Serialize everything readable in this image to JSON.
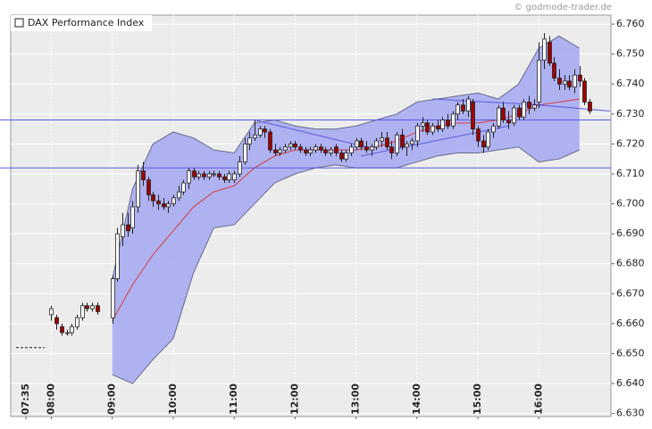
{
  "chart_data": {
    "type": "candlestick",
    "title": "DAX Performance Index",
    "source": "© godmode-trader.de",
    "xlim": [
      440,
      1031
    ],
    "ylim": [
      6629,
      6763
    ],
    "xticks": [
      {
        "value": 455,
        "label": "07:35"
      },
      {
        "value": 480,
        "label": "08:00"
      },
      {
        "value": 540,
        "label": "09:00"
      },
      {
        "value": 600,
        "label": "10:00"
      },
      {
        "value": 660,
        "label": "11:00"
      },
      {
        "value": 720,
        "label": "12:00"
      },
      {
        "value": 780,
        "label": "13:00"
      },
      {
        "value": 840,
        "label": "14:00"
      },
      {
        "value": 900,
        "label": "15:00"
      },
      {
        "value": 960,
        "label": "16:00"
      }
    ],
    "yticks": [
      {
        "value": 6630,
        "label": "6.630"
      },
      {
        "value": 6640,
        "label": "6.640"
      },
      {
        "value": 6650,
        "label": "6.650"
      },
      {
        "value": 6660,
        "label": "6.660"
      },
      {
        "value": 6670,
        "label": "6.670"
      },
      {
        "value": 6680,
        "label": "6.680"
      },
      {
        "value": 6690,
        "label": "6.690"
      },
      {
        "value": 6700,
        "label": "6.700"
      },
      {
        "value": 6710,
        "label": "6.710"
      },
      {
        "value": 6720,
        "label": "6.720"
      },
      {
        "value": 6730,
        "label": "6.730"
      },
      {
        "value": 6740,
        "label": "6.740"
      },
      {
        "value": 6750,
        "label": "6.750"
      },
      {
        "value": 6760,
        "label": "6.760"
      }
    ],
    "grid": true,
    "up_color": "#ffffff",
    "down_color": "#a00000",
    "band_color": "#a9acf2",
    "middle_color": "#d83c3c",
    "line_color": "#5a5ae0",
    "previous_close": 6652,
    "horizontal_lines": [
      6728,
      6712
    ],
    "trend_lines": [
      [
        680,
        6728,
        790,
        6719
      ],
      [
        785,
        6716,
        930,
        6726
      ],
      [
        855,
        6735,
        965,
        6733
      ],
      [
        960,
        6733,
        1030,
        6731
      ]
    ],
    "candles": [
      [
        480,
        6663,
        6666,
        6661,
        6665
      ],
      [
        485,
        6662,
        6663,
        6658,
        6660
      ],
      [
        490,
        6659,
        6660,
        6656,
        6657
      ],
      [
        495,
        6657,
        6658,
        6656,
        6657
      ],
      [
        500,
        6657,
        6660,
        6656,
        6659
      ],
      [
        505,
        6659,
        6663,
        6658,
        6662
      ],
      [
        510,
        6662,
        6667,
        6661,
        6666
      ],
      [
        515,
        6666,
        6667,
        6664,
        6665
      ],
      [
        520,
        6665,
        6667,
        6664,
        6666
      ],
      [
        525,
        6666,
        6667,
        6663,
        6664
      ],
      [
        540,
        6662,
        6676,
        6660,
        6675
      ],
      [
        545,
        6675,
        6692,
        6674,
        6690
      ],
      [
        550,
        6689,
        6697,
        6686,
        6693
      ],
      [
        555,
        6693,
        6697,
        6689,
        6691
      ],
      [
        560,
        6692,
        6701,
        6690,
        6699
      ],
      [
        565,
        6699,
        6713,
        6697,
        6711
      ],
      [
        570,
        6711,
        6714,
        6706,
        6708
      ],
      [
        575,
        6708,
        6709,
        6701,
        6703
      ],
      [
        580,
        6703,
        6704,
        6699,
        6701
      ],
      [
        585,
        6701,
        6703,
        6698,
        6700
      ],
      [
        590,
        6700,
        6702,
        6698,
        6699
      ],
      [
        595,
        6699,
        6701,
        6697,
        6700
      ],
      [
        600,
        6700,
        6703,
        6699,
        6702
      ],
      [
        605,
        6702,
        6706,
        6701,
        6704
      ],
      [
        610,
        6704,
        6708,
        6703,
        6707
      ],
      [
        615,
        6707,
        6712,
        6705,
        6711
      ],
      [
        620,
        6711,
        6712,
        6708,
        6709
      ],
      [
        625,
        6709,
        6711,
        6708,
        6710
      ],
      [
        630,
        6710,
        6711,
        6708,
        6709
      ],
      [
        635,
        6709,
        6711,
        6708,
        6710
      ],
      [
        640,
        6710,
        6711,
        6709,
        6710
      ],
      [
        645,
        6710,
        6711,
        6708,
        6709
      ],
      [
        650,
        6709,
        6710,
        6707,
        6708
      ],
      [
        655,
        6708,
        6711,
        6707,
        6710
      ],
      [
        660,
        6708,
        6711,
        6707,
        6710
      ],
      [
        665,
        6710,
        6716,
        6709,
        6714
      ],
      [
        670,
        6714,
        6722,
        6713,
        6720
      ],
      [
        675,
        6720,
        6724,
        6718,
        6722
      ],
      [
        680,
        6722,
        6728,
        6721,
        6723
      ],
      [
        685,
        6723,
        6726,
        6722,
        6725
      ],
      [
        690,
        6725,
        6726,
        6722,
        6724
      ],
      [
        695,
        6724,
        6725,
        6717,
        6718
      ],
      [
        700,
        6718,
        6720,
        6716,
        6717
      ],
      [
        705,
        6717,
        6719,
        6716,
        6718
      ],
      [
        710,
        6718,
        6720,
        6717,
        6719
      ],
      [
        715,
        6719,
        6721,
        6718,
        6720
      ],
      [
        720,
        6720,
        6721,
        6718,
        6719
      ],
      [
        725,
        6719,
        6720,
        6717,
        6718
      ],
      [
        730,
        6718,
        6719,
        6716,
        6717
      ],
      [
        735,
        6717,
        6719,
        6716,
        6718
      ],
      [
        740,
        6718,
        6720,
        6717,
        6719
      ],
      [
        745,
        6719,
        6720,
        6717,
        6718
      ],
      [
        750,
        6718,
        6719,
        6716,
        6717
      ],
      [
        755,
        6717,
        6719,
        6716,
        6718
      ],
      [
        760,
        6719,
        6720,
        6716,
        6717
      ],
      [
        765,
        6717,
        6718,
        6714,
        6715
      ],
      [
        770,
        6715,
        6718,
        6714,
        6717
      ],
      [
        775,
        6717,
        6720,
        6716,
        6719
      ],
      [
        780,
        6719,
        6722,
        6718,
        6721
      ],
      [
        785,
        6721,
        6722,
        6718,
        6719
      ],
      [
        790,
        6719,
        6721,
        6717,
        6718
      ],
      [
        795,
        6718,
        6720,
        6716,
        6719
      ],
      [
        800,
        6719,
        6722,
        6718,
        6721
      ],
      [
        805,
        6721,
        6724,
        6719,
        6722
      ],
      [
        810,
        6722,
        6724,
        6718,
        6719
      ],
      [
        815,
        6719,
        6721,
        6715,
        6717
      ],
      [
        820,
        6717,
        6724,
        6716,
        6723
      ],
      [
        825,
        6723,
        6725,
        6718,
        6719
      ],
      [
        830,
        6719,
        6721,
        6716,
        6720
      ],
      [
        835,
        6720,
        6722,
        6718,
        6721
      ],
      [
        840,
        6721,
        6727,
        6719,
        6726
      ],
      [
        845,
        6726,
        6729,
        6724,
        6727
      ],
      [
        850,
        6727,
        6728,
        6723,
        6724
      ],
      [
        855,
        6724,
        6727,
        6723,
        6726
      ],
      [
        860,
        6726,
        6728,
        6724,
        6725
      ],
      [
        865,
        6725,
        6729,
        6724,
        6728
      ],
      [
        870,
        6728,
        6730,
        6725,
        6726
      ],
      [
        875,
        6726,
        6731,
        6725,
        6730
      ],
      [
        880,
        6730,
        6734,
        6728,
        6733
      ],
      [
        885,
        6733,
        6735,
        6730,
        6731
      ],
      [
        890,
        6731,
        6736,
        6729,
        6735
      ],
      [
        895,
        6734,
        6735,
        6723,
        6725
      ],
      [
        900,
        6725,
        6726,
        6719,
        6721
      ],
      [
        905,
        6721,
        6723,
        6717,
        6719
      ],
      [
        910,
        6719,
        6725,
        6718,
        6724
      ],
      [
        915,
        6724,
        6727,
        6722,
        6726
      ],
      [
        920,
        6726,
        6733,
        6725,
        6732
      ],
      [
        925,
        6732,
        6734,
        6727,
        6728
      ],
      [
        930,
        6728,
        6731,
        6725,
        6727
      ],
      [
        935,
        6727,
        6733,
        6726,
        6732
      ],
      [
        940,
        6732,
        6733,
        6728,
        6729
      ],
      [
        945,
        6729,
        6735,
        6728,
        6734
      ],
      [
        950,
        6734,
        6736,
        6730,
        6732
      ],
      [
        955,
        6732,
        6735,
        6731,
        6733
      ],
      [
        960,
        6734,
        6754,
        6732,
        6748
      ],
      [
        965,
        6748,
        6757,
        6745,
        6755
      ],
      [
        970,
        6754,
        6756,
        6746,
        6747
      ],
      [
        975,
        6747,
        6749,
        6741,
        6742
      ],
      [
        980,
        6742,
        6745,
        6738,
        6740
      ],
      [
        985,
        6740,
        6743,
        6738,
        6741
      ],
      [
        990,
        6741,
        6743,
        6738,
        6739
      ],
      [
        995,
        6739,
        6745,
        6737,
        6743
      ],
      [
        1000,
        6743,
        6746,
        6739,
        6741
      ],
      [
        1005,
        6741,
        6742,
        6733,
        6734
      ],
      [
        1010,
        6734,
        6735,
        6730,
        6731
      ]
    ],
    "bands": {
      "x": [
        540,
        560,
        580,
        600,
        620,
        640,
        660,
        680,
        700,
        720,
        740,
        760,
        780,
        800,
        820,
        840,
        860,
        880,
        900,
        920,
        940,
        960,
        980,
        1000
      ],
      "upper": [
        6675,
        6705,
        6720,
        6724,
        6722,
        6718,
        6717,
        6727,
        6728,
        6726,
        6725,
        6725,
        6726,
        6728,
        6730,
        6734,
        6735,
        6736,
        6737,
        6735,
        6740,
        6752,
        6756,
        6752
      ],
      "lower": [
        6643,
        6640,
        6648,
        6655,
        6677,
        6692,
        6693,
        6700,
        6707,
        6710,
        6712,
        6713,
        6712,
        6712,
        6712,
        6714,
        6716,
        6717,
        6717,
        6718,
        6719,
        6714,
        6715,
        6718
      ],
      "middle": [
        6661,
        6673,
        6683,
        6691,
        6699,
        6704,
        6706,
        6712,
        6716,
        6718,
        6718,
        6718,
        6718,
        6719,
        6721,
        6724,
        6726,
        6727,
        6727,
        6728,
        6730,
        6733,
        6734,
        6735
      ]
    }
  }
}
